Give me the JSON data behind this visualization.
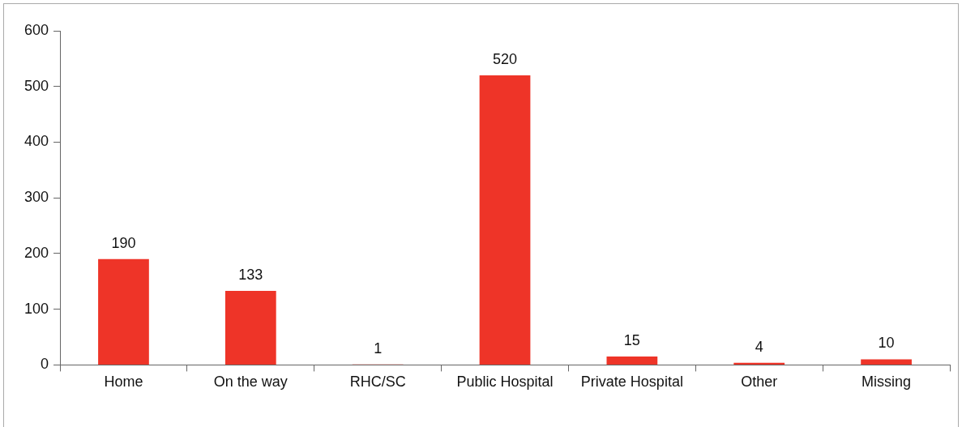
{
  "chart_data": {
    "type": "bar",
    "categories": [
      "Home",
      "On the way",
      "RHC/SC",
      "Public Hospital",
      "Private Hospital",
      "Other",
      "Missing"
    ],
    "values": [
      190,
      133,
      1,
      520,
      15,
      4,
      10
    ],
    "color": "#ee3428",
    "ylim": [
      0,
      600
    ],
    "yticks": [
      0,
      100,
      200,
      300,
      400,
      500,
      600
    ],
    "data_labels": true
  }
}
